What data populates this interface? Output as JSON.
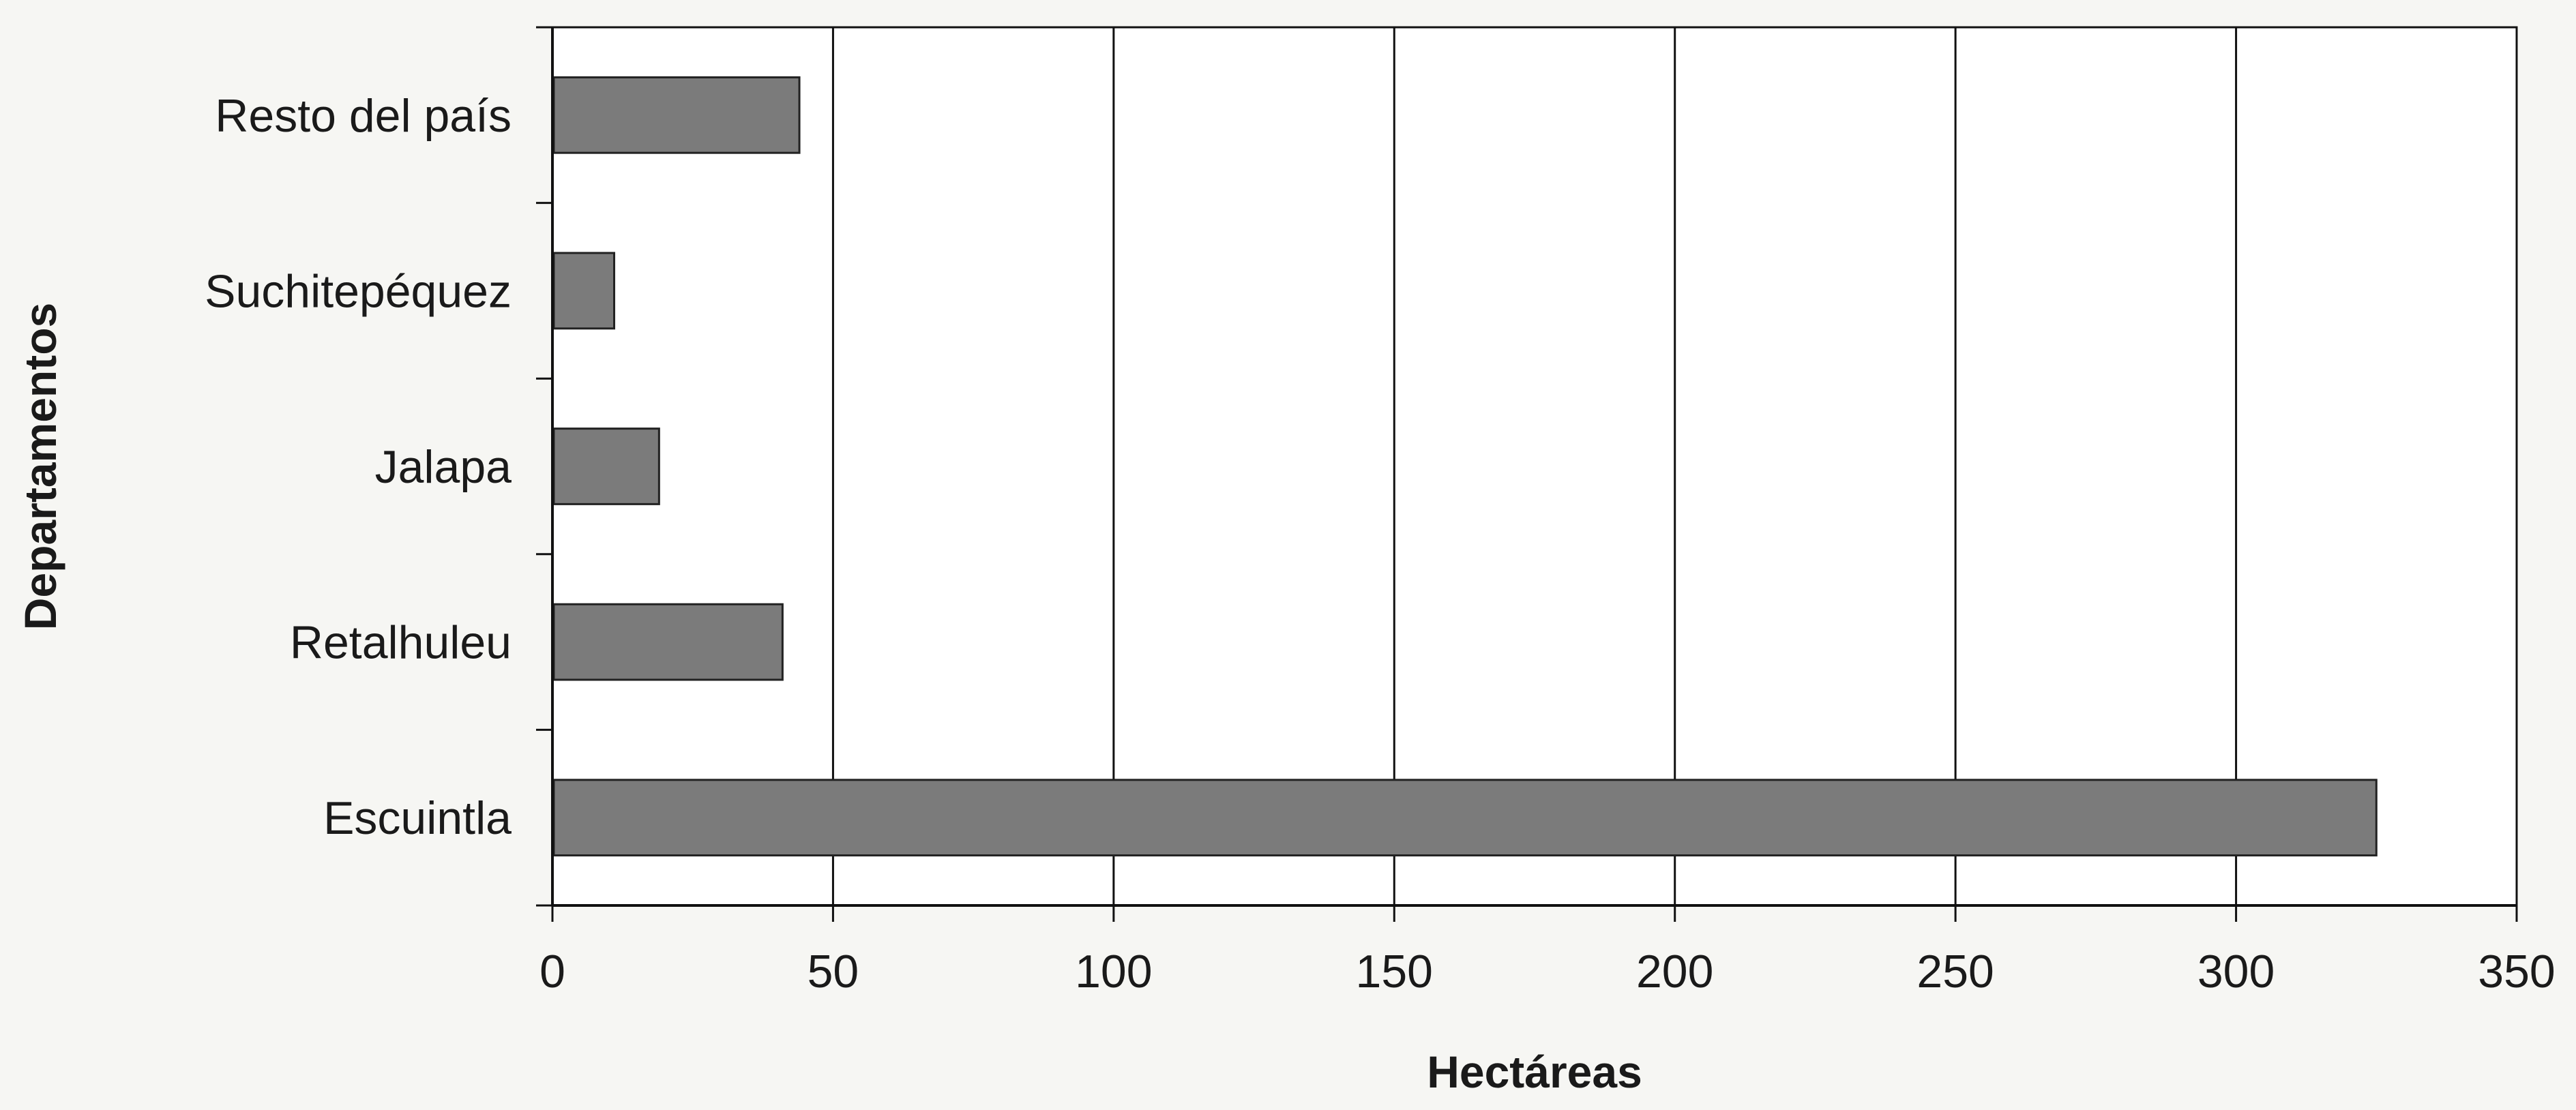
{
  "chart_data": {
    "type": "bar",
    "orientation": "horizontal",
    "categories": [
      "Escuintla",
      "Retalhuleu",
      "Jalapa",
      "Suchitepéquez",
      "Resto del país"
    ],
    "values": [
      325,
      41,
      19,
      11,
      44
    ],
    "title": "",
    "xlabel": "Hectáreas",
    "ylabel": "Departamentos",
    "xlim": [
      0,
      350
    ],
    "xticks": [
      "0",
      "50",
      "100",
      "150",
      "200",
      "250",
      "300",
      "350"
    ],
    "grid": true,
    "legend": "none",
    "bar_color": "#7b7b7b",
    "background_color": "#ffffff"
  }
}
